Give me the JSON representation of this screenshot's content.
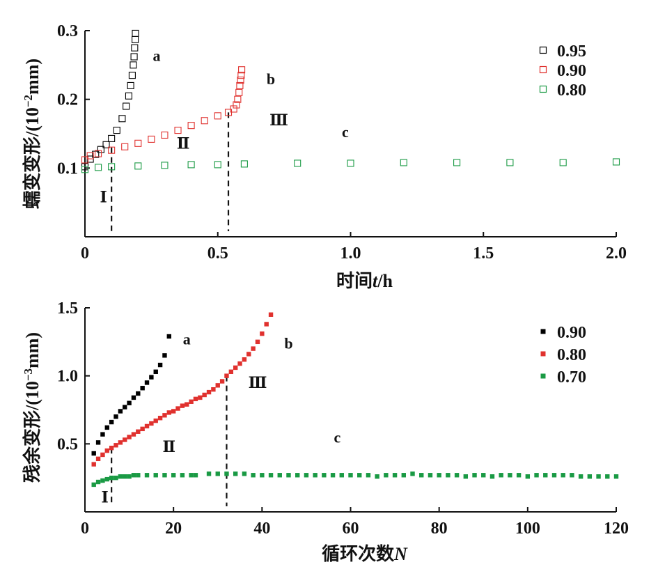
{
  "chart_data": [
    {
      "type": "scatter",
      "xlabel_main": "时间",
      "xlabel_var": "t",
      "xlabel_unit": "/h",
      "ylabel_main": "蠕变变形/(10",
      "ylabel_sup": "−2",
      "ylabel_tail": "mm)",
      "xlim": [
        0,
        2.0
      ],
      "ylim": [
        0,
        0.3
      ],
      "xticks": [
        "0",
        "0.5",
        "1.0",
        "1.5",
        "2.0"
      ],
      "xtick_values": [
        0,
        0.5,
        1.0,
        1.5,
        2.0
      ],
      "yticks": [
        "0.1",
        "0.2",
        "0.3"
      ],
      "ytick_values": [
        0.1,
        0.2,
        0.3
      ],
      "marker": "open-square",
      "grid": false,
      "legend_position": "top-right",
      "series": [
        {
          "name": "0.95",
          "color": "#000000",
          "curve_label": "a",
          "x": [
            0,
            0.02,
            0.04,
            0.06,
            0.08,
            0.1,
            0.12,
            0.14,
            0.155,
            0.165,
            0.172,
            0.178,
            0.182,
            0.185,
            0.187,
            0.189,
            0.19
          ],
          "y": [
            0.102,
            0.113,
            0.12,
            0.127,
            0.134,
            0.143,
            0.155,
            0.172,
            0.19,
            0.205,
            0.22,
            0.235,
            0.25,
            0.262,
            0.275,
            0.287,
            0.296
          ]
        },
        {
          "name": "0.90",
          "color": "#e0312e",
          "curve_label": "b",
          "x": [
            0,
            0.02,
            0.05,
            0.1,
            0.15,
            0.2,
            0.25,
            0.3,
            0.35,
            0.4,
            0.45,
            0.5,
            0.54,
            0.56,
            0.57,
            0.575,
            0.58,
            0.583,
            0.586,
            0.588,
            0.59
          ],
          "y": [
            0.112,
            0.118,
            0.121,
            0.126,
            0.131,
            0.136,
            0.142,
            0.148,
            0.155,
            0.162,
            0.169,
            0.176,
            0.181,
            0.186,
            0.192,
            0.2,
            0.21,
            0.22,
            0.228,
            0.235,
            0.243
          ]
        },
        {
          "name": "0.80",
          "color": "#1a9a44",
          "curve_label": "c",
          "x": [
            0,
            0.05,
            0.1,
            0.2,
            0.3,
            0.4,
            0.5,
            0.6,
            0.8,
            1.0,
            1.2,
            1.4,
            1.6,
            1.8,
            2.0
          ],
          "y": [
            0.098,
            0.101,
            0.102,
            0.103,
            0.104,
            0.105,
            0.105,
            0.106,
            0.107,
            0.107,
            0.108,
            0.108,
            0.108,
            0.108,
            0.109
          ]
        }
      ],
      "stage_lines": [
        {
          "x": 0.1,
          "y_top": 0.13
        },
        {
          "x": 0.54,
          "y_top": 0.181
        }
      ],
      "annotations": [
        {
          "text": "a",
          "x": 0.27,
          "y": 0.256
        },
        {
          "text": "b",
          "x": 0.7,
          "y": 0.222
        },
        {
          "text": "c",
          "x": 0.98,
          "y": 0.145
        },
        {
          "text": "Ⅰ",
          "x": 0.07,
          "y": 0.05
        },
        {
          "text": "Ⅱ",
          "x": 0.37,
          "y": 0.128
        },
        {
          "text": "Ⅲ",
          "x": 0.73,
          "y": 0.162
        }
      ]
    },
    {
      "type": "scatter",
      "xlabel_main": "循环次数",
      "xlabel_var": "N",
      "ylabel_main": "残余变形/(10",
      "ylabel_sup": "−3",
      "ylabel_tail": "mm)",
      "xlim": [
        0,
        120
      ],
      "ylim": [
        0,
        1.5
      ],
      "xticks": [
        "0",
        "20",
        "40",
        "60",
        "80",
        "100",
        "120"
      ],
      "xtick_values": [
        0,
        20,
        40,
        60,
        80,
        100,
        120
      ],
      "yticks": [
        "0.5",
        "1.0",
        "1.5"
      ],
      "ytick_values": [
        0.5,
        1.0,
        1.5
      ],
      "marker": "filled-square",
      "grid": false,
      "legend_position": "top-right",
      "series": [
        {
          "name": "0.90",
          "color": "#000000",
          "curve_label": "a",
          "x": [
            2,
            3,
            4,
            5,
            6,
            7,
            8,
            9,
            10,
            11,
            12,
            13,
            14,
            15,
            16,
            17,
            18,
            19
          ],
          "y": [
            0.43,
            0.51,
            0.57,
            0.62,
            0.66,
            0.7,
            0.74,
            0.77,
            0.8,
            0.84,
            0.87,
            0.91,
            0.95,
            0.99,
            1.03,
            1.08,
            1.15,
            1.29
          ]
        },
        {
          "name": "0.80",
          "color": "#e0312e",
          "curve_label": "b",
          "x": [
            2,
            3,
            4,
            5,
            6,
            7,
            8,
            9,
            10,
            11,
            12,
            13,
            14,
            15,
            16,
            17,
            18,
            19,
            20,
            21,
            22,
            23,
            24,
            25,
            26,
            27,
            28,
            29,
            30,
            31,
            32,
            33,
            34,
            35,
            36,
            37,
            38,
            39,
            40,
            41,
            42
          ],
          "y": [
            0.35,
            0.39,
            0.42,
            0.45,
            0.47,
            0.49,
            0.51,
            0.53,
            0.55,
            0.57,
            0.59,
            0.61,
            0.63,
            0.65,
            0.67,
            0.69,
            0.71,
            0.73,
            0.74,
            0.76,
            0.78,
            0.79,
            0.81,
            0.83,
            0.84,
            0.86,
            0.88,
            0.9,
            0.93,
            0.96,
            1.0,
            1.03,
            1.06,
            1.09,
            1.12,
            1.16,
            1.2,
            1.25,
            1.31,
            1.38,
            1.45
          ]
        },
        {
          "name": "0.70",
          "color": "#1a9a44",
          "curve_label": "c",
          "x": [
            2,
            3,
            4,
            5,
            6,
            7,
            8,
            9,
            10,
            11,
            12,
            14,
            16,
            18,
            20,
            22,
            24,
            25,
            28,
            30,
            32,
            34,
            36,
            38,
            40,
            42,
            44,
            46,
            48,
            50,
            52,
            54,
            56,
            58,
            60,
            62,
            64,
            66,
            68,
            70,
            72,
            74,
            76,
            78,
            80,
            82,
            84,
            86,
            88,
            90,
            92,
            94,
            96,
            98,
            100,
            102,
            104,
            106,
            108,
            110,
            112,
            114,
            116,
            118,
            120
          ],
          "y": [
            0.2,
            0.22,
            0.23,
            0.24,
            0.25,
            0.25,
            0.26,
            0.26,
            0.26,
            0.27,
            0.27,
            0.27,
            0.27,
            0.27,
            0.27,
            0.27,
            0.27,
            0.27,
            0.28,
            0.28,
            0.28,
            0.28,
            0.28,
            0.27,
            0.27,
            0.27,
            0.27,
            0.27,
            0.27,
            0.27,
            0.27,
            0.27,
            0.27,
            0.27,
            0.27,
            0.27,
            0.27,
            0.26,
            0.27,
            0.27,
            0.27,
            0.28,
            0.27,
            0.27,
            0.27,
            0.27,
            0.27,
            0.26,
            0.27,
            0.27,
            0.26,
            0.27,
            0.27,
            0.27,
            0.26,
            0.27,
            0.27,
            0.27,
            0.27,
            0.27,
            0.26,
            0.26,
            0.26,
            0.26,
            0.26
          ]
        }
      ],
      "stage_lines": [
        {
          "x": 6,
          "y_top": 0.47
        },
        {
          "x": 32,
          "y_top": 1.0
        }
      ],
      "annotations": [
        {
          "text": "a",
          "x": 23,
          "y": 1.23
        },
        {
          "text": "b",
          "x": 46,
          "y": 1.2
        },
        {
          "text": "c",
          "x": 57,
          "y": 0.51
        },
        {
          "text": "Ⅰ",
          "x": 4.5,
          "y": 0.07
        },
        {
          "text": "Ⅱ",
          "x": 19,
          "y": 0.44
        },
        {
          "text": "Ⅲ",
          "x": 39,
          "y": 0.91
        }
      ]
    }
  ]
}
